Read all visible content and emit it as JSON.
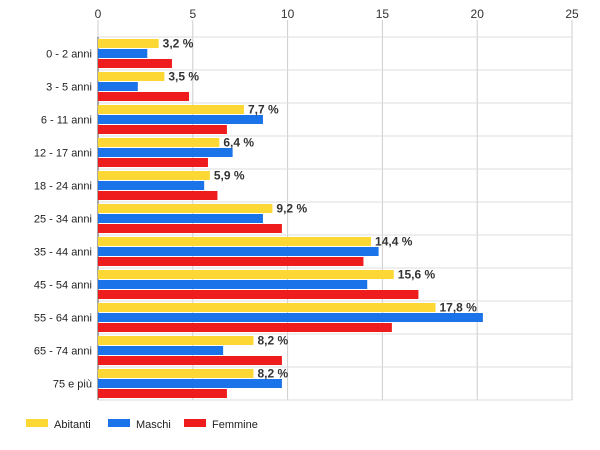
{
  "chart_data": {
    "type": "bar",
    "orientation": "horizontal",
    "categories": [
      "0 - 2 anni",
      "3 - 5 anni",
      "6 - 11 anni",
      "12 - 17 anni",
      "18 - 24 anni",
      "25 - 34 anni",
      "35 - 44 anni",
      "45 - 54 anni",
      "55 - 64 anni",
      "65 - 74 anni",
      "75 e più"
    ],
    "series": [
      {
        "name": "Abitanti",
        "color": "#fdd835",
        "values": [
          3.2,
          3.5,
          7.7,
          6.4,
          5.9,
          9.2,
          14.4,
          15.6,
          17.8,
          8.2,
          8.2
        ]
      },
      {
        "name": "Maschi",
        "color": "#1a73e8",
        "values": [
          2.6,
          2.1,
          8.7,
          7.1,
          5.6,
          8.7,
          14.8,
          14.2,
          20.3,
          6.6,
          9.7
        ]
      },
      {
        "name": "Femmine",
        "color": "#ee1c1c",
        "values": [
          3.9,
          4.8,
          6.8,
          5.8,
          6.3,
          9.7,
          14.0,
          16.9,
          15.5,
          9.7,
          6.8
        ]
      }
    ],
    "data_labels": [
      "3,2 %",
      "3,5 %",
      "7,7 %",
      "6,4 %",
      "5,9 %",
      "9,2 %",
      "14,4 %",
      "15,6 %",
      "17,8 %",
      "8,2 %",
      "8,2 %"
    ],
    "x_ticks": [
      "0",
      "5",
      "10",
      "15",
      "20",
      "25"
    ],
    "xlim": [
      0,
      25
    ],
    "grid": true,
    "legend_position": "bottom-left"
  }
}
